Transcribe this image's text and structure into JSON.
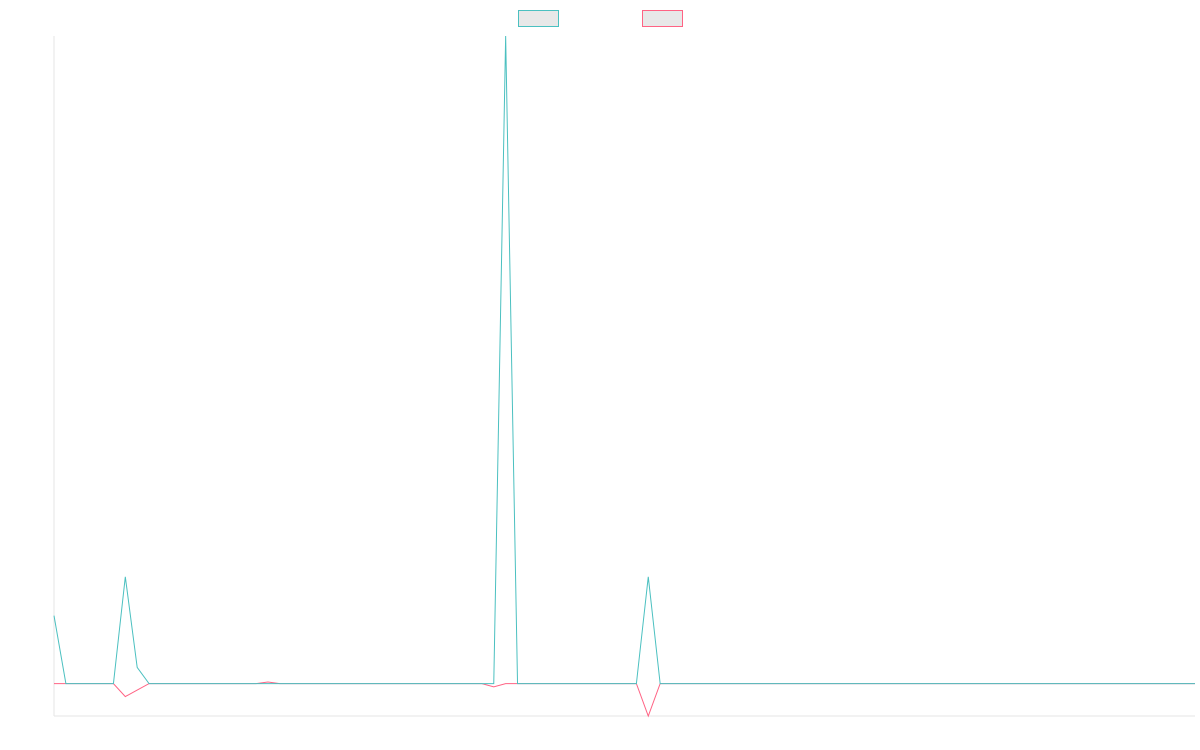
{
  "chart_data": {
    "type": "line",
    "title": "",
    "xlabel": "",
    "ylabel": "",
    "grid": false,
    "legend_position": "top",
    "x": [
      0,
      1,
      2,
      3,
      4,
      5,
      6,
      7,
      8,
      9,
      10,
      11,
      12,
      13,
      14,
      15,
      16,
      17,
      18,
      19,
      20,
      21,
      22,
      23,
      24,
      25,
      26,
      27,
      28,
      29,
      30,
      31,
      32,
      33,
      34,
      35,
      36,
      37,
      38,
      39,
      40,
      41,
      42,
      43,
      44,
      45,
      46,
      47,
      48,
      49,
      50,
      51,
      52,
      53,
      54,
      55,
      56,
      57,
      58,
      59,
      60,
      61,
      62,
      63,
      64,
      65,
      66,
      67,
      68,
      69,
      70,
      71,
      72,
      73,
      74,
      75,
      76,
      77,
      78,
      79,
      80,
      81,
      82,
      83,
      84,
      85,
      86,
      87,
      88,
      89,
      90,
      91,
      92,
      93,
      94,
      95,
      96
    ],
    "ylim": [
      -10,
      200
    ],
    "series": [
      {
        "name": "",
        "color": "#4bc0c0",
        "fill": "#e8e8e8",
        "values": [
          21,
          0,
          0,
          0,
          0,
          0,
          33,
          5,
          0,
          0,
          0,
          0,
          0,
          0,
          0,
          0,
          0,
          0,
          0,
          0,
          0,
          0,
          0,
          0,
          0,
          0,
          0,
          0,
          0,
          0,
          0,
          0,
          0,
          0,
          0,
          0,
          0,
          0,
          200,
          0,
          0,
          0,
          0,
          0,
          0,
          0,
          0,
          0,
          0,
          0,
          33,
          0,
          0,
          0,
          0,
          0,
          0,
          0,
          0,
          0,
          0,
          0,
          0,
          0,
          0,
          0,
          0,
          0,
          0,
          0,
          0,
          0,
          0,
          0,
          0,
          0,
          0,
          0,
          0,
          0,
          0,
          0,
          0,
          0,
          0,
          0,
          0,
          0,
          0,
          0,
          0,
          0,
          0,
          0,
          0,
          0,
          0
        ]
      },
      {
        "name": "",
        "color": "#ff6384",
        "fill": "#e8e8e8",
        "values": [
          0,
          0,
          0,
          0,
          0,
          0,
          -4,
          -2,
          0,
          0,
          0,
          0,
          0,
          0,
          0,
          0,
          0,
          0,
          0.5,
          0,
          0,
          0,
          0,
          0,
          0,
          0,
          0,
          0,
          0,
          0,
          0,
          0,
          0,
          0,
          0,
          0,
          0,
          -1,
          0,
          0,
          0,
          0,
          0,
          0,
          0,
          0,
          0,
          0,
          0,
          0,
          -10,
          0,
          0,
          0,
          0,
          0,
          0,
          0,
          0,
          0,
          0,
          0,
          0,
          0,
          0,
          0,
          0,
          0,
          0,
          0,
          0,
          0,
          0,
          0,
          0,
          0,
          0,
          0,
          0,
          0,
          0,
          0,
          0,
          0,
          0,
          0,
          0,
          0,
          0,
          0,
          0,
          0,
          0,
          0,
          0,
          0,
          0
        ]
      }
    ]
  }
}
